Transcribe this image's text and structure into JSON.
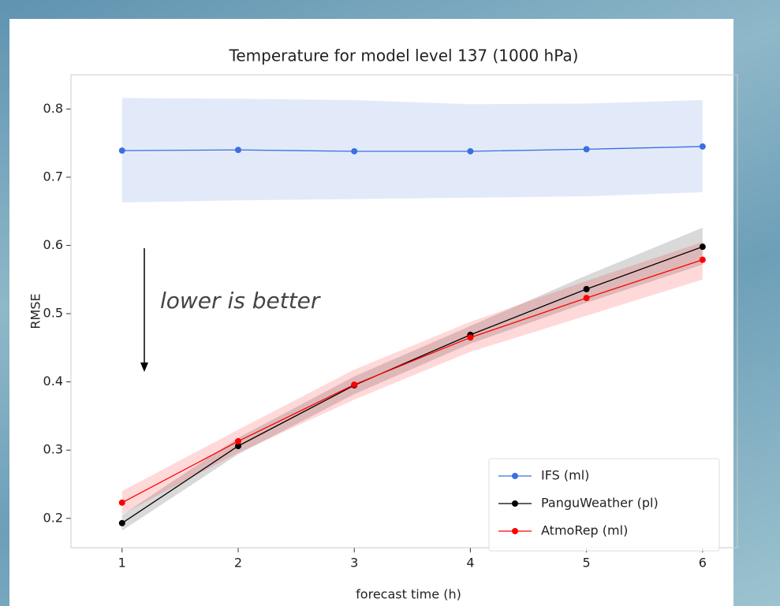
{
  "chart_data": {
    "type": "line",
    "title": "Temperature for model level 137 (1000 hPa)",
    "xlabel": "forecast time (h)",
    "ylabel": "RMSE",
    "annotation": "lower is better",
    "x": [
      1,
      2,
      3,
      4,
      5,
      6
    ],
    "series": [
      {
        "name": "IFS (ml)",
        "color": "#3b6fe0",
        "values": [
          0.739,
          0.74,
          0.738,
          0.738,
          0.741,
          0.745
        ],
        "band_lower": [
          0.663,
          0.666,
          0.668,
          0.67,
          0.672,
          0.678
        ],
        "band_upper": [
          0.816,
          0.815,
          0.813,
          0.807,
          0.808,
          0.813
        ]
      },
      {
        "name": "PanguWeather (pl)",
        "color": "#000000",
        "values": [
          0.193,
          0.306,
          0.395,
          0.469,
          0.536,
          0.598
        ],
        "band_lower": [
          0.182,
          0.294,
          0.382,
          0.456,
          0.516,
          0.572
        ],
        "band_upper": [
          0.205,
          0.318,
          0.408,
          0.482,
          0.556,
          0.626
        ]
      },
      {
        "name": "AtmoRep (ml)",
        "color": "#ff0000",
        "values": [
          0.223,
          0.313,
          0.396,
          0.465,
          0.523,
          0.579
        ],
        "band_lower": [
          0.206,
          0.296,
          0.374,
          0.444,
          0.497,
          0.55
        ],
        "band_upper": [
          0.24,
          0.33,
          0.418,
          0.488,
          0.548,
          0.605
        ]
      }
    ],
    "xlim": [
      0.56,
      6.3
    ],
    "ylim": [
      0.157,
      0.85
    ],
    "xticks": [
      1,
      2,
      3,
      4,
      5,
      6
    ],
    "yticks": [
      0.2,
      0.3,
      0.4,
      0.5,
      0.6,
      0.7,
      0.8
    ],
    "legend": "lower right"
  }
}
